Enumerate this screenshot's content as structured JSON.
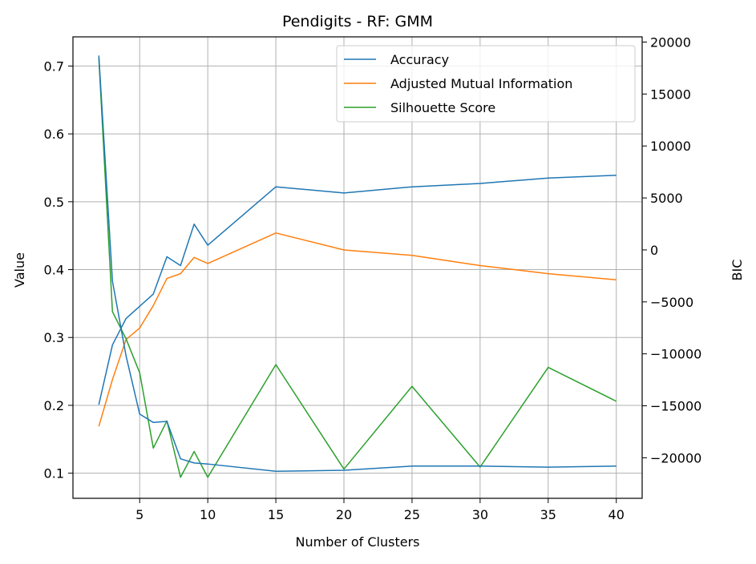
{
  "chart_data": {
    "type": "line",
    "title": "Pendigits - RF: GMM",
    "xlabel": "Number of Clusters",
    "ylabel": "Value",
    "y2label": "BIC",
    "xlim": [
      0.1,
      41.9
    ],
    "ylim": [
      0.063,
      0.743
    ],
    "y2lim": [
      -23900,
      20500
    ],
    "xticks": [
      5,
      10,
      15,
      20,
      25,
      30,
      35,
      40
    ],
    "yticks": [
      0.1,
      0.2,
      0.3,
      0.4,
      0.5,
      0.6,
      0.7
    ],
    "y2ticks": [
      -20000,
      -15000,
      -10000,
      -5000,
      0,
      5000,
      10000,
      15000,
      20000
    ],
    "grid": true,
    "legend_position": "top-right",
    "colors": {
      "accuracy": "#1f77b4",
      "ami": "#ff7f0e",
      "silhouette": "#2ca02c",
      "bic": "#1f77b4"
    },
    "x": [
      2,
      3,
      4,
      5,
      6,
      7,
      8,
      9,
      10,
      15,
      20,
      25,
      30,
      35,
      40
    ],
    "series": [
      {
        "name": "Accuracy",
        "axis": "left",
        "color": "#1f77b4",
        "values": [
          0.201,
          0.289,
          0.328,
          0.346,
          0.364,
          0.419,
          0.406,
          0.467,
          0.436,
          0.522,
          0.513,
          0.522,
          0.527,
          0.535,
          0.539
        ]
      },
      {
        "name": "Adjusted Mutual Information",
        "axis": "left",
        "color": "#ff7f0e",
        "values": [
          0.169,
          0.238,
          0.297,
          0.314,
          0.347,
          0.387,
          0.394,
          0.418,
          0.409,
          0.454,
          0.429,
          0.421,
          0.406,
          0.394,
          0.385
        ]
      },
      {
        "name": "Silhouette Score",
        "axis": "left",
        "color": "#2ca02c",
        "values": [
          0.712,
          0.338,
          0.298,
          0.248,
          0.137,
          0.177,
          0.094,
          0.132,
          0.094,
          0.26,
          0.106,
          0.228,
          0.109,
          0.256,
          0.206
        ]
      },
      {
        "axis": "right",
        "color": "#1f77b4",
        "values": [
          18700,
          -3000,
          -10200,
          -15800,
          -16600,
          -16500,
          -20100,
          -20500,
          -20600,
          -21300,
          -21200,
          -20800,
          -20800,
          -20900,
          -20800
        ]
      }
    ]
  }
}
